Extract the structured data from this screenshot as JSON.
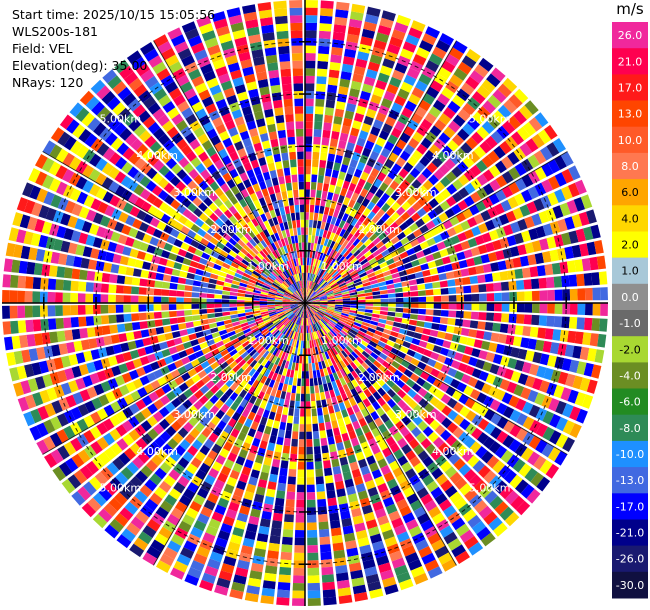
{
  "header": {
    "start_time": "Start time: 2025/10/15 15:05:56",
    "station": "WLS200s-181",
    "field": "Field: VEL",
    "elevation": "Elevation(deg): 35.00",
    "nrays": "NRays: 120"
  },
  "colorbar": {
    "unit": "m/s",
    "levels": [
      {
        "label": "26.0",
        "color": "#f0289c"
      },
      {
        "label": "21.0",
        "color": "#ff0050"
      },
      {
        "label": "17.0",
        "color": "#ff1a1a"
      },
      {
        "label": "13.0",
        "color": "#ff4500"
      },
      {
        "label": "10.0",
        "color": "#ff5a28"
      },
      {
        "label": "8.0",
        "color": "#ff7850"
      },
      {
        "label": "6.0",
        "color": "#ffa500"
      },
      {
        "label": "4.0",
        "color": "#ffd700"
      },
      {
        "label": "2.0",
        "color": "#ffff00"
      },
      {
        "label": "1.0",
        "color": "#a8c8d8"
      },
      {
        "label": "0.0",
        "color": "#8f8f8f"
      },
      {
        "label": "-1.0",
        "color": "#6a6a6a"
      },
      {
        "label": "-2.0",
        "color": "#a8d832"
      },
      {
        "label": "-4.0",
        "color": "#6b8e23"
      },
      {
        "label": "-6.0",
        "color": "#228b22"
      },
      {
        "label": "-8.0",
        "color": "#2e8b57"
      },
      {
        "label": "-10.0",
        "color": "#1e90ff"
      },
      {
        "label": "-13.0",
        "color": "#4169e1"
      },
      {
        "label": "-17.0",
        "color": "#0000ff"
      },
      {
        "label": "-21.0",
        "color": "#00008b"
      },
      {
        "label": "-26.0",
        "color": "#191970"
      },
      {
        "label": "-30.0",
        "color": "#101040"
      }
    ]
  },
  "chart_data": {
    "type": "heatmap",
    "projection": "polar PPI",
    "field": "VEL",
    "elevation_deg": 35.0,
    "nrays": 120,
    "max_range_km": 5.8,
    "range_rings_km": [
      1.0,
      2.0,
      3.0,
      4.0,
      5.0
    ],
    "ring_labels": [
      "1.00km",
      "2.00km",
      "3.00km",
      "4.00km",
      "5.00km"
    ],
    "azimuth_lines_deg": [
      0,
      30,
      60,
      90,
      120,
      150,
      180,
      210,
      240,
      270,
      300,
      330
    ],
    "ticks": [
      "-5",
      "-4",
      "-3",
      "-2",
      "-1",
      "0",
      "1",
      "2",
      "3",
      "4",
      "5"
    ],
    "grid": true
  }
}
